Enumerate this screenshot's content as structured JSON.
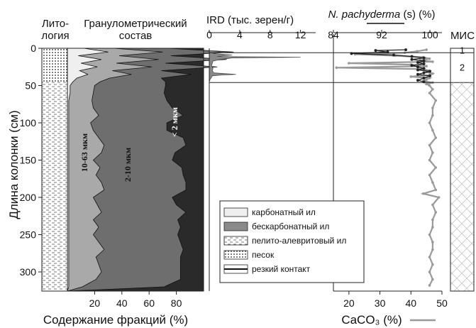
{
  "chart_data": [
    {
      "id": "lithology",
      "type": "table",
      "title": "Лито-\nлогия",
      "units": [
        "песок",
        "пелито-алевритовый ил"
      ]
    },
    {
      "id": "grain",
      "type": "area",
      "title": "Гранулометрический\nсостав",
      "xlabel": "Содержание фракций (%)",
      "ylabel": "Длина колонки (см)",
      "xlim": [
        0,
        100
      ],
      "ylim": [
        0,
        320
      ],
      "xticks": [
        20,
        40,
        60,
        80
      ],
      "yticks": [
        0,
        50,
        100,
        150,
        200,
        250,
        300
      ],
      "band_labels": [
        "10-63 мкм",
        "2-10 мкм",
        "< 2 мкм"
      ],
      "depth": [
        0,
        5,
        10,
        15,
        20,
        25,
        30,
        35,
        40,
        45,
        50,
        60,
        70,
        80,
        90,
        100,
        110,
        120,
        130,
        140,
        150,
        160,
        170,
        180,
        190,
        200,
        210,
        220,
        230,
        240,
        250,
        260,
        270,
        280,
        290,
        300,
        310,
        320
      ],
      "series": [
        {
          "name": "карбонатный ил",
          "values": [
            12,
            30,
            8,
            25,
            10,
            22,
            9,
            15,
            7,
            4,
            2,
            2,
            1,
            1,
            1,
            1,
            1,
            1,
            1,
            1,
            1,
            1,
            1,
            1,
            1,
            1,
            1,
            1,
            1,
            1,
            1,
            1,
            1,
            1,
            1,
            1,
            1,
            1
          ]
        },
        {
          "name": "10-63 мкм",
          "values": [
            22,
            40,
            30,
            42,
            26,
            40,
            24,
            32,
            24,
            20,
            18,
            17,
            17,
            18,
            22,
            16,
            18,
            22,
            26,
            24,
            18,
            23,
            20,
            24,
            26,
            18,
            21,
            24,
            18,
            22,
            18,
            22,
            26,
            20,
            22,
            24,
            20,
            10
          ]
        },
        {
          "name": "2-10 мкм",
          "values": [
            40,
            52,
            38,
            50,
            36,
            48,
            36,
            44,
            38,
            48,
            52,
            52,
            55,
            58,
            62,
            56,
            54,
            62,
            60,
            54,
            58,
            60,
            64,
            62,
            60,
            58,
            58,
            62,
            62,
            60,
            62,
            60,
            58,
            62,
            60,
            58,
            62,
            60
          ]
        }
      ]
    },
    {
      "id": "ird",
      "type": "area",
      "title": "IRD (тыс. зерен/г)",
      "xlim": [
        0,
        14
      ],
      "xticks": [
        0,
        4,
        8,
        12
      ],
      "depth": [
        0,
        3,
        5,
        7,
        9,
        11,
        12,
        13,
        15,
        17,
        20,
        24,
        27,
        30,
        33,
        35,
        36,
        37,
        39,
        42,
        45
      ],
      "values": [
        0,
        0,
        1.5,
        0.5,
        3.0,
        1.0,
        12.0,
        3.0,
        1.5,
        0.5,
        0.4,
        0.3,
        0.5,
        0.4,
        0.6,
        3.5,
        1.5,
        0.4,
        0.3,
        0.1,
        0
      ]
    },
    {
      "id": "npach_caco3",
      "type": "line",
      "title": "N. pachyderma (s) (%)",
      "xlabel": "CaCO₃ (%)",
      "top_axis": {
        "xlim": [
          84,
          102
        ],
        "xticks": [
          84,
          92,
          100
        ]
      },
      "bottom_axis": {
        "xlim": [
          15,
          50
        ],
        "xticks": [
          20,
          30,
          40,
          50
        ]
      },
      "series": [
        {
          "name": "N. pachyderma (s)",
          "color": "#222222",
          "depth": [
            2,
            3,
            5,
            7,
            9,
            11,
            13,
            15,
            17,
            19,
            21,
            23,
            25,
            27,
            29,
            31,
            33,
            35,
            37,
            40,
            43,
            45
          ],
          "values": [
            96,
            91,
            93,
            87,
            94,
            97,
            99,
            97,
            99,
            98,
            99,
            97,
            98,
            99,
            98,
            100,
            99,
            98,
            100,
            99,
            98,
            99
          ]
        },
        {
          "name": "CaCO₃",
          "color": "#999999",
          "depth": [
            2,
            4,
            6,
            8,
            10,
            12,
            14,
            16,
            18,
            20,
            22,
            24,
            26,
            28,
            30,
            32,
            34,
            36,
            38,
            40,
            42,
            44,
            46,
            48,
            50,
            55,
            60,
            70,
            80,
            90,
            100,
            110,
            120,
            130,
            140,
            150,
            160,
            170,
            180,
            190,
            195,
            200,
            210,
            220,
            230,
            240,
            250,
            260,
            270,
            280,
            290,
            300,
            310,
            318
          ],
          "values": [
            45,
            42,
            38,
            22,
            35,
            44,
            46,
            43,
            47,
            20,
            40,
            45,
            16,
            44,
            46,
            45,
            47,
            46,
            40,
            46,
            45,
            44,
            47,
            45,
            46,
            47,
            46,
            48,
            47,
            47,
            46,
            47,
            48,
            46,
            47,
            46,
            48,
            46,
            47,
            48,
            44,
            49,
            47,
            48,
            47,
            47,
            46,
            47,
            47,
            46,
            47,
            46,
            47,
            46
          ]
        }
      ]
    },
    {
      "id": "mis",
      "type": "table",
      "title": "МИС",
      "stages": [
        {
          "label": "1",
          "from": 0,
          "to": 5
        },
        {
          "label": "2",
          "from": 5,
          "to": 45
        }
      ]
    }
  ],
  "legend": {
    "items": [
      {
        "label": "карбонатный ил",
        "swatch": "#efefef"
      },
      {
        "label": "бескарбонатный ил",
        "swatch": "#8a8a8a"
      },
      {
        "label": "пелито-алевритовый ил",
        "swatch": "dash"
      },
      {
        "label": "песок",
        "swatch": "dots"
      },
      {
        "label": "резкий контакт",
        "swatch": "line"
      }
    ]
  },
  "colors": {
    "carbonate": "#efefef",
    "coarse": "#a9a9a9",
    "mid": "#6e6e6e",
    "clay": "#2a2a2a",
    "ird": "#888888",
    "npach": "#222222",
    "caco3": "#999999"
  }
}
